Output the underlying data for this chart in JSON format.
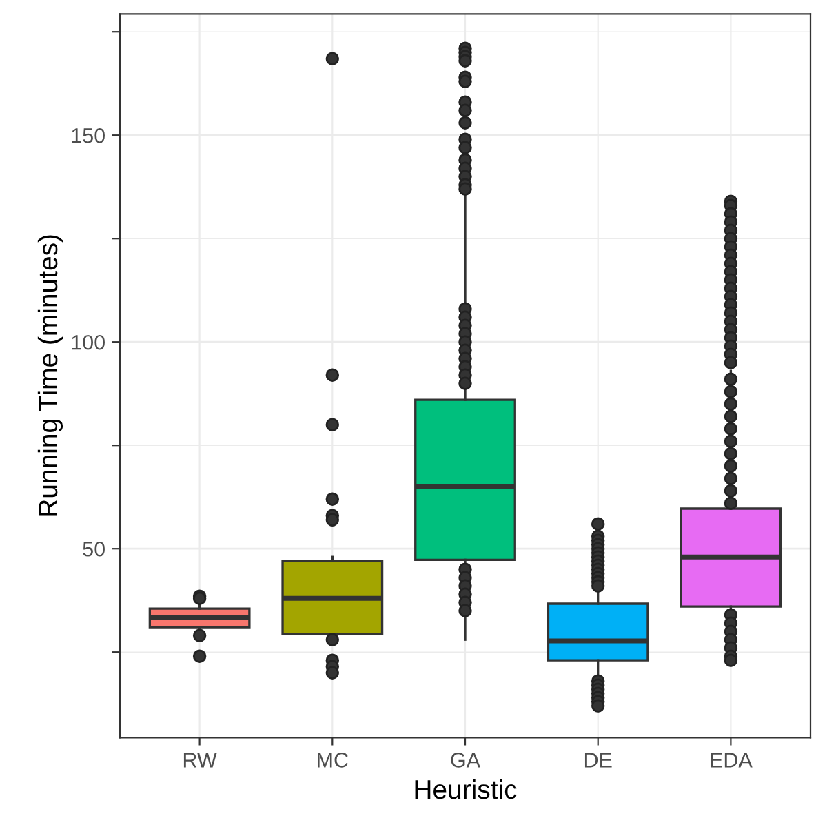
{
  "chart_data": {
    "type": "box",
    "xlabel": "Heuristic",
    "ylabel": "Running Time (minutes)",
    "categories": [
      "RW",
      "MC",
      "GA",
      "DE",
      "EDA"
    ],
    "colors": [
      "#f8766d",
      "#a3a500",
      "#00bf7d",
      "#00b0f6",
      "#e76bf3"
    ],
    "boxes": [
      {
        "low": 30.5,
        "q1": 31,
        "median": 33.3,
        "q3": 35.5,
        "high": 36.5,
        "outliers": [
          38.5,
          38,
          29,
          24
        ]
      },
      {
        "low": 28.5,
        "q1": 29.3,
        "median": 38,
        "q3": 47,
        "high": 48,
        "outliers": [
          168.5,
          92,
          80,
          62,
          58,
          57,
          28,
          23,
          21.5,
          20
        ]
      },
      {
        "low": 28,
        "q1": 47.3,
        "median": 65,
        "q3": 86,
        "high": 136,
        "outliers": [
          171,
          170,
          169,
          168,
          164,
          163,
          158,
          156,
          153,
          149,
          147,
          144,
          142,
          140,
          138,
          137,
          108,
          106,
          104,
          102,
          100,
          98,
          96,
          94,
          92,
          90,
          45,
          43,
          41,
          39,
          37,
          35
        ]
      },
      {
        "low": 19,
        "q1": 23,
        "median": 27.7,
        "q3": 36.7,
        "high": 40,
        "outliers": [
          56,
          53,
          52,
          51,
          50,
          49,
          48,
          47,
          46,
          45,
          44,
          43,
          42,
          41,
          18,
          17,
          16,
          15,
          14,
          13,
          12
        ]
      },
      {
        "low": 22,
        "q1": 36,
        "median": 48,
        "q3": 59.7,
        "high": 93,
        "outliers": [
          134,
          133,
          131,
          129,
          127,
          125,
          123,
          121,
          119,
          117,
          115,
          113,
          111,
          109,
          107,
          105,
          103,
          101,
          99,
          97,
          95,
          91,
          88,
          85,
          82,
          79,
          76,
          73,
          70,
          67,
          64,
          61,
          34,
          32,
          30,
          28,
          26,
          24,
          23
        ]
      }
    ],
    "ylim": [
      4.3,
      179.3
    ],
    "yticks": [
      {
        "value": 25,
        "label": null
      },
      50,
      {
        "value": 75,
        "label": null
      },
      100,
      {
        "value": 125,
        "label": null
      },
      150,
      {
        "value": 175,
        "label": null
      }
    ],
    "grid": true
  }
}
